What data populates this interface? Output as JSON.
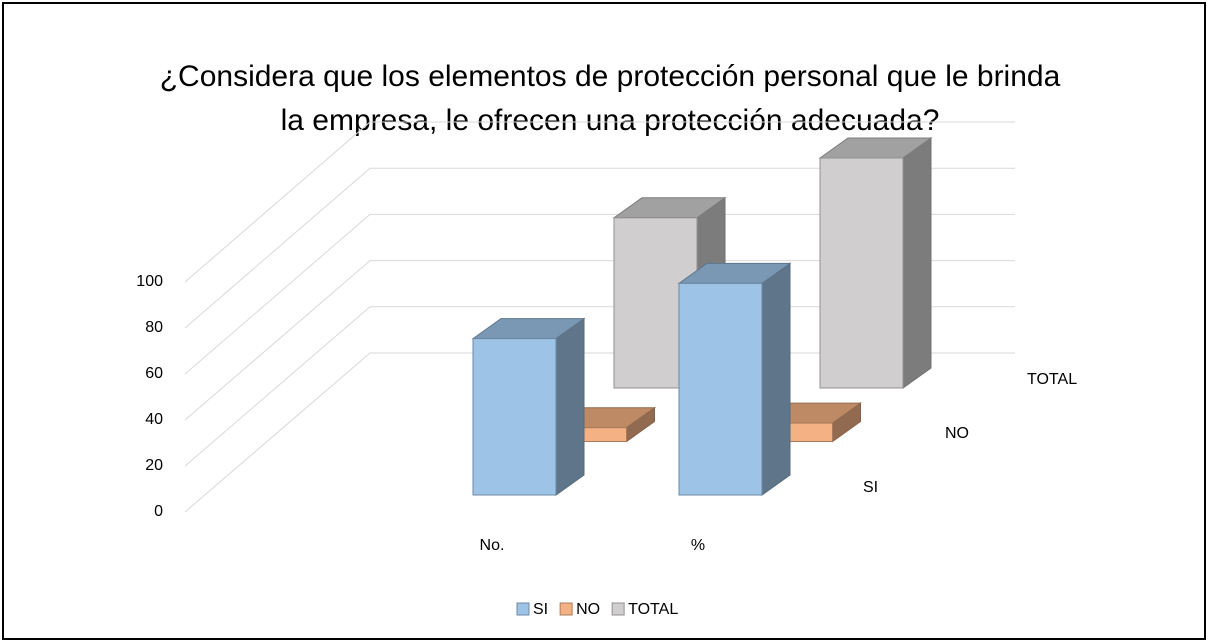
{
  "chart_data": {
    "type": "bar3d",
    "title": "¿Considera que los elementos de protección personal que le brinda la empresa, le ofrecen una protección adecuada?",
    "categories": [
      "No.",
      "%"
    ],
    "series": [
      {
        "name": "SI",
        "color": "#9dc3e6",
        "values": [
          68,
          92
        ]
      },
      {
        "name": "NO",
        "color": "#f4b183",
        "values": [
          6,
          8
        ]
      },
      {
        "name": "TOTAL",
        "color": "#d0cece",
        "values": [
          74,
          100
        ]
      }
    ],
    "ylim": [
      0,
      100
    ],
    "yticks": [
      0,
      20,
      40,
      60,
      80,
      100
    ],
    "grid": true,
    "legend": "bottom"
  }
}
